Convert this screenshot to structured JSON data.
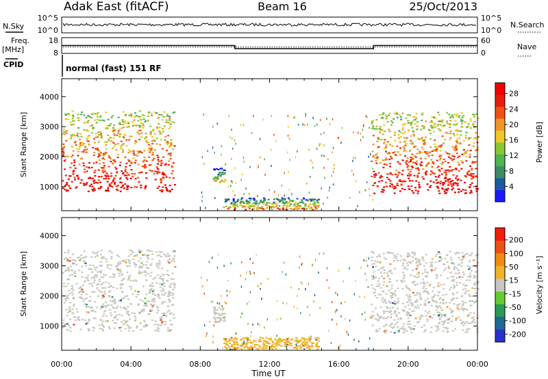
{
  "header": {
    "station": "Adak East (fitACF)",
    "beam": "Beam 16",
    "date": "25/Oct/2013",
    "cpid_text": "normal (fast) 151 RF"
  },
  "small_panels": {
    "nsky": {
      "left_label": "N.Sky",
      "left_ticks": [
        "10^5",
        "10^0"
      ],
      "right_ticks": [
        "10^5",
        "10^0"
      ],
      "right_label": "N.Search"
    },
    "freq": {
      "left_label_1": "Freq.",
      "left_label_2": "[MHz]",
      "left_ticks": [
        "18",
        "8"
      ],
      "right_ticks": [
        "60",
        "0"
      ],
      "right_label": "Nave",
      "cpid_label": "CPID",
      "freq_steps": [
        {
          "from": 0,
          "to": 10,
          "mhz": 13
        },
        {
          "from": 10,
          "to": 18,
          "mhz": 11
        },
        {
          "from": 18,
          "to": 24,
          "mhz": 13
        }
      ],
      "nave": 24
    }
  },
  "chart_data": [
    {
      "type": "heatmap",
      "title": "",
      "xlabel": "Time UT",
      "ylabel": "Slant Range [km]",
      "xlim": [
        0,
        24
      ],
      "ylim": [
        200,
        4600
      ],
      "x_ticks": [
        "00:00",
        "04:00",
        "08:00",
        "12:00",
        "16:00",
        "20:00",
        "00:00"
      ],
      "y_ticks": [
        "1000",
        "2000",
        "3000",
        "4000"
      ],
      "colorbar": {
        "label": "Power [dB]",
        "ticks": [
          "4",
          "8",
          "12",
          "16",
          "20",
          "24",
          "28"
        ],
        "range": [
          0,
          30
        ],
        "colors": [
          "#1a1aff",
          "#1e5aa0",
          "#3c8c64",
          "#50b450",
          "#8cc832",
          "#f0c828",
          "#f09628",
          "#f05014",
          "#e61e0a",
          "#f00000"
        ]
      },
      "regions": [
        {
          "name": "morning-echoes",
          "t": [
            0.0,
            6.5
          ],
          "r": [
            850,
            3550
          ],
          "value": 22
        },
        {
          "name": "cluster-09h",
          "t": [
            8.7,
            9.4
          ],
          "r": [
            1150,
            1650
          ],
          "value": 10
        },
        {
          "name": "midday-near-range",
          "t": [
            9.3,
            14.8
          ],
          "r": [
            250,
            650
          ],
          "value": 14
        },
        {
          "name": "evening-echoes",
          "t": [
            17.8,
            24.0
          ],
          "r": [
            800,
            3500
          ],
          "value": 22
        }
      ]
    },
    {
      "type": "heatmap",
      "title": "",
      "xlabel": "Time UT",
      "ylabel": "Slant Range [km]",
      "xlim": [
        0,
        24
      ],
      "ylim": [
        200,
        4600
      ],
      "x_ticks": [
        "00:00",
        "04:00",
        "08:00",
        "12:00",
        "16:00",
        "20:00",
        "00:00"
      ],
      "y_ticks": [
        "1000",
        "2000",
        "3000",
        "4000"
      ],
      "colorbar": {
        "label": "Velocity [m s⁻¹]",
        "ticks": [
          "200",
          "100",
          "50",
          "15",
          "-15",
          "-50",
          "-100",
          "-200"
        ],
        "range": [
          -250,
          250
        ],
        "colors": [
          "#2832c8",
          "#1e6a96",
          "#2a9b54",
          "#66cc33",
          "#c8c8c0",
          "#f0b428",
          "#f08c14",
          "#f05014",
          "#f01e0a"
        ]
      },
      "regions": [
        {
          "name": "morning-echoes",
          "t": [
            0.0,
            6.5
          ],
          "r": [
            850,
            3550
          ],
          "value": 0
        },
        {
          "name": "cluster-09h",
          "t": [
            8.7,
            9.4
          ],
          "r": [
            1150,
            1650
          ],
          "value": 0
        },
        {
          "name": "midday-near-range",
          "t": [
            9.3,
            14.8
          ],
          "r": [
            250,
            650
          ],
          "value": 60
        },
        {
          "name": "evening-echoes",
          "t": [
            17.8,
            24.0
          ],
          "r": [
            800,
            3500
          ],
          "value": 0
        }
      ]
    }
  ]
}
